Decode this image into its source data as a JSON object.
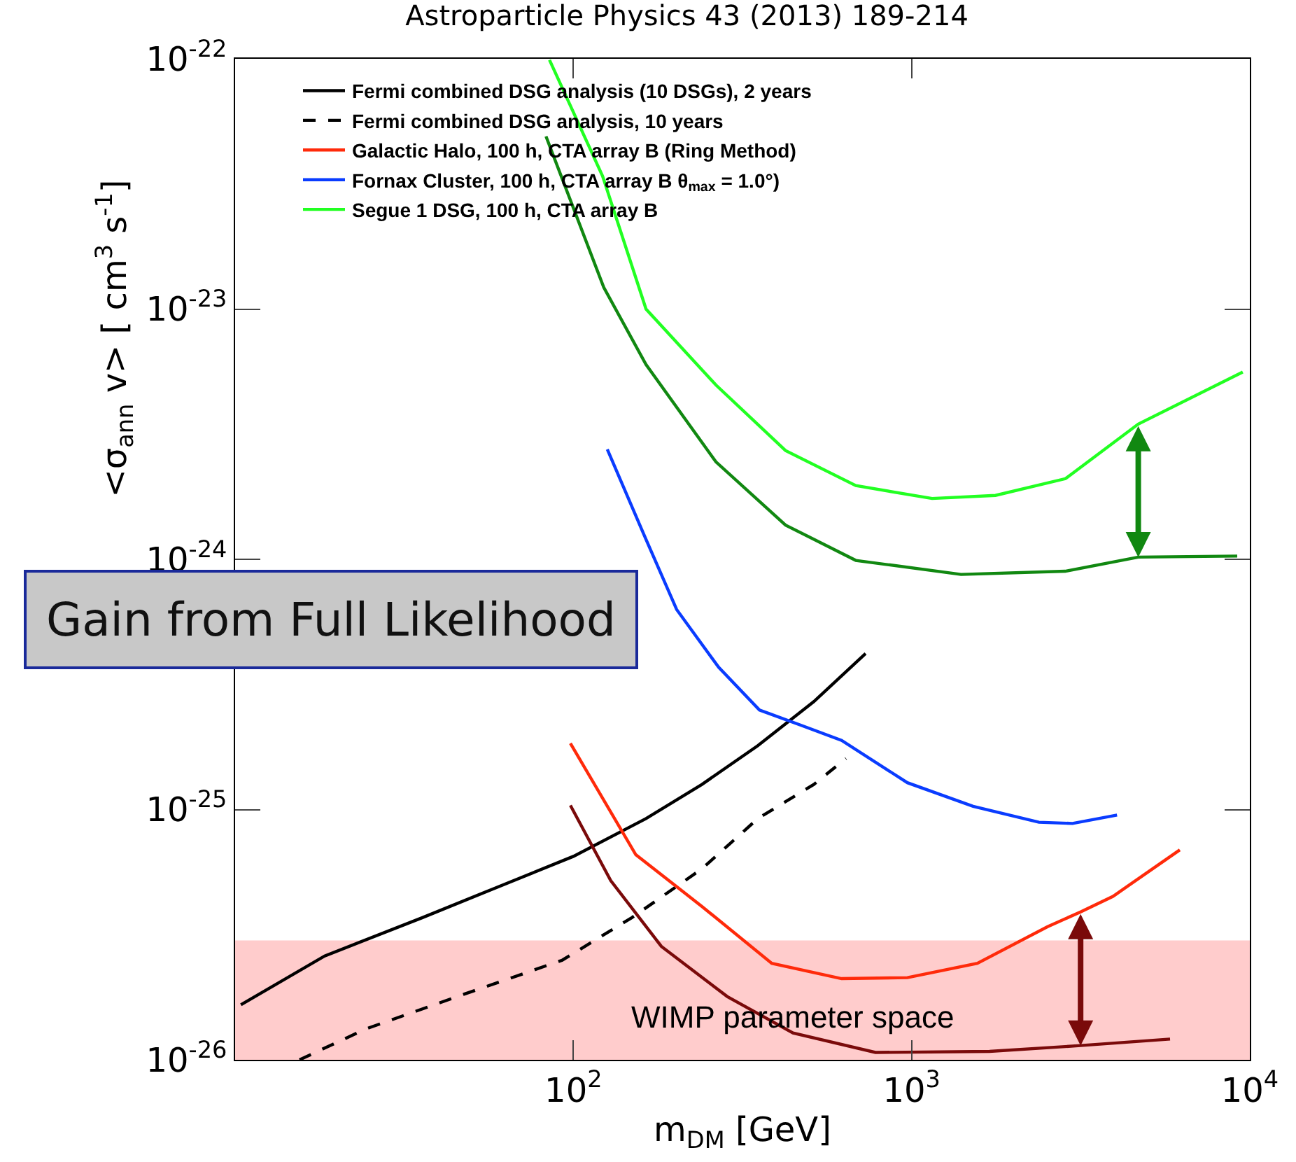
{
  "chart_data": {
    "type": "line",
    "title": "Astroparticle Physics 43 (2013) 189-214",
    "xlabel": "m$_{DM}$ [GeV]",
    "ylabel": "<σ$_{ann}$ v> [ cm$^{3}$ s$^{-1}$]",
    "log": "xy",
    "xlim": [
      10,
      10000
    ],
    "ylim": [
      1e-26,
      1e-22
    ],
    "xticks": [
      {
        "value": 100,
        "label": "10$^{2}$"
      },
      {
        "value": 1000,
        "label": "10$^{3}$"
      },
      {
        "value": 10000,
        "label": "10$^{4}$"
      }
    ],
    "yticks": [
      {
        "value": 1e-26,
        "label": "10$^{-26}$"
      },
      {
        "value": 1e-25,
        "label": "10$^{-25}$"
      },
      {
        "value": 1e-24,
        "label": "10$^{-24}$"
      },
      {
        "value": 1e-23,
        "label": "10$^{-23}$"
      },
      {
        "value": 1e-22,
        "label": "10$^{-22}$"
      }
    ],
    "grid": false,
    "legend": "top left",
    "marker": "none",
    "series": [
      {
        "name": "Fermi combined DSG analysis (10 DSGs), 2 years",
        "color": "#000000",
        "line_style": "solid",
        "x": [
          10.4,
          18.4,
          35.8,
          57.5,
          100,
          164,
          240,
          351,
          514,
          731
        ],
        "values": [
          1.66e-26,
          2.6e-26,
          3.7e-26,
          4.8e-26,
          6.5e-26,
          9.2e-26,
          1.26e-25,
          1.8e-25,
          2.7e-25,
          4.2e-25
        ]
      },
      {
        "name": "Fermi combined DSG analysis, 10 years",
        "color": "#000000",
        "line_style": "dashed",
        "x": [
          15.5,
          24.4,
          47.6,
          92.7,
          149,
          240,
          351,
          514,
          640
        ],
        "values": [
          1e-26,
          1.33e-26,
          1.83e-26,
          2.5e-26,
          3.7e-26,
          5.8e-26,
          9.2e-26,
          1.26e-25,
          1.6e-25
        ]
      },
      {
        "name": "Galactic Halo, 100 h, CTA array B (Ring Method)",
        "color": "#ff2a0a",
        "line_style": "solid",
        "x": [
          98,
          153,
          240,
          386,
          621,
          972,
          1565,
          2520,
          3160,
          3940,
          6210
        ],
        "values": [
          1.84e-25,
          6.6e-26,
          4.1e-26,
          2.43e-26,
          2.11e-26,
          2.13e-26,
          2.43e-26,
          3.4e-26,
          3.9e-26,
          4.5e-26,
          6.9e-26
        ]
      },
      {
        "name": "Fornax Cluster, 100 h, CTA array B θ$_{max}$ = 1.0°)",
        "color": "#0a3cff",
        "line_style": "solid",
        "x": [
          126,
          164,
          202,
          269,
          355,
          472,
          621,
          972,
          1520,
          2380,
          2990,
          4050
        ],
        "values": [
          2.75e-24,
          1.2e-24,
          6.3e-25,
          3.7e-25,
          2.5e-25,
          2.17e-25,
          1.89e-25,
          1.28e-25,
          1.03e-25,
          8.9e-26,
          8.8e-26,
          9.5e-26
        ]
      },
      {
        "name": "Segue 1 DSG, 100 h, CTA array B",
        "color": "#22ff22",
        "line_style": "solid",
        "x": [
          85,
          122,
          164,
          264,
          424,
          684,
          1150,
          1770,
          2850,
          4680,
          9530
        ],
        "values": [
          9.9e-23,
          3.4e-23,
          1e-23,
          4.97e-24,
          2.72e-24,
          1.97e-24,
          1.75e-24,
          1.8e-24,
          2.1e-24,
          3.47e-24,
          5.6e-24
        ]
      },
      {
        "color": "#7a0a0a",
        "line_style": "solid",
        "x": [
          98,
          129,
          182,
          285,
          446,
          782,
          1700,
          3160,
          5810
        ],
        "values": [
          1.04e-25,
          5.2e-26,
          2.84e-26,
          1.79e-26,
          1.28e-26,
          1.07e-26,
          1.08e-26,
          1.14e-26,
          1.21e-26
        ]
      },
      {
        "color": "#118811",
        "line_style": "solid",
        "x": [
          83,
          123,
          164,
          264,
          424,
          684,
          1400,
          2850,
          4680,
          9180
        ],
        "values": [
          4.9e-23,
          1.22e-23,
          6e-24,
          2.45e-24,
          1.37e-24,
          9.9e-25,
          8.7e-25,
          8.96e-25,
          1.02e-24,
          1.03e-24
        ]
      }
    ],
    "bands": [
      {
        "axis": "y",
        "from": 1e-26,
        "to": 3e-26,
        "label": "WIMP parameter space",
        "color": "#ffcccc"
      }
    ],
    "annotations": [
      "Gain from Full Likelihood"
    ]
  }
}
